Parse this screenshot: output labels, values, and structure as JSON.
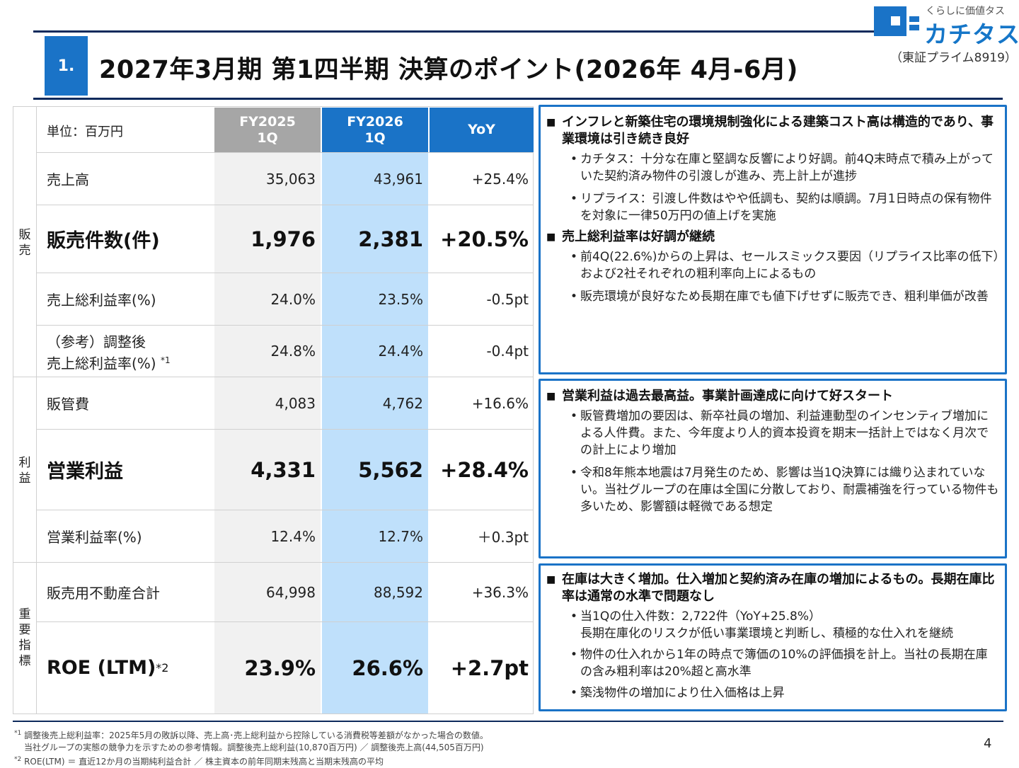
{
  "header": {
    "section_number": "1.",
    "title": "2027年3月期 第1四半期 決算のポイント(2026年 4月-6月)",
    "logo_tagline": "くらしに価値タス",
    "logo_name": "カチタス",
    "ticker": "（東証プライム8919）"
  },
  "table": {
    "unit": "単位：百万円",
    "columns": [
      {
        "line1": "FY2025",
        "line2": "1Q"
      },
      {
        "line1": "FY2026",
        "line2": "1Q"
      },
      {
        "line1": "YoY"
      }
    ],
    "groups": {
      "sales": "販\n売",
      "profit": "利\n益",
      "kpi": "重\n要\n指\n標"
    },
    "rows": [
      {
        "label": "売上高",
        "fy25": "35,063",
        "fy26": "43,961",
        "yoy": "+25.4%"
      },
      {
        "label": "販売件数(件)",
        "fy25": "1,976",
        "fy26": "2,381",
        "yoy": "+20.5%"
      },
      {
        "label": "売上総利益率(%)",
        "fy25": "24.0%",
        "fy26": "23.5%",
        "yoy": "-0.5pt"
      },
      {
        "label_line1": "（参考）調整後",
        "label_line2": "売上総利益率(%)",
        "label_sup": "*1",
        "fy25": "24.8%",
        "fy26": "24.4%",
        "yoy": "-0.4pt"
      },
      {
        "label": "販管費",
        "fy25": "4,083",
        "fy26": "4,762",
        "yoy": "+16.6%"
      },
      {
        "label": "営業利益",
        "fy25": "4,331",
        "fy26": "5,562",
        "yoy": "+28.4%"
      },
      {
        "label": "営業利益率(%)",
        "fy25": "12.4%",
        "fy26": "12.7%",
        "yoy": "＋0.3pt"
      },
      {
        "label": "販売用不動産合計",
        "fy25": "64,998",
        "fy26": "88,592",
        "yoy": "+36.3%"
      },
      {
        "label": "ROE (LTM)",
        "label_sup": "*2",
        "fy25": "23.9%",
        "fy26": "26.6%",
        "yoy": "+2.7pt"
      }
    ]
  },
  "panels": [
    {
      "heading": "インフレと新築住宅の環境規制強化による建築コスト高は構造的であり、事業環境は引き続き良好",
      "bullets": [
        "カチタス：十分な在庫と堅調な反響により好調。前4Q末時点で積み上がっていた契約済み物件の引渡しが進み、売上計上が進捗",
        "リプライス：引渡し件数はやや低調も、契約は順調。7月1日時点の保有物件を対象に一律50万円の値上げを実施"
      ],
      "heading2": "売上総利益率は好調が継続",
      "bullets2": [
        "前4Q(22.6%)からの上昇は、セールスミックス要因（リプライス比率の低下）および2社それぞれの粗利率向上によるもの",
        "販売環境が良好なため長期在庫でも値下げせずに販売でき、粗利単価が改善"
      ]
    },
    {
      "heading": "営業利益は過去最高益。事業計画達成に向けて好スタート",
      "bullets": [
        "販管費増加の要因は、新卒社員の増加、利益連動型のインセンティブ増加による人件費。また、今年度より人的資本投資を期末一括計上ではなく月次での計上により増加",
        "令和8年熊本地震は7月発生のため、影響は当1Q決算には織り込まれていない。当社グループの在庫は全国に分散しており、耐震補強を行っている物件も多いため、影響額は軽微である想定"
      ]
    },
    {
      "heading": "在庫は大きく増加。仕入増加と契約済み在庫の増加によるもの。長期在庫比率は通常の水準で問題なし",
      "bullets": [
        "当1Qの仕入件数：2,722件（YoY+25.8%）",
        "物件の仕入れから1年の時点で簿価の10%の評価損を計上。当社の長期在庫の含み粗利率は20%超と高水準",
        "築浅物件の増加により仕入価格は上昇"
      ],
      "bullet1_line2": "長期在庫化のリスクが低い事業環境と判断し、積極的な仕入れを継続"
    }
  ],
  "footnotes": {
    "n1_mark": "*1",
    "n1_line1": "調整後売上総利益率：2025年5月の敗訴以降、売上高･売上総利益から控除している消費税等差額がなかった場合の数値。",
    "n1_line2": "当社グループの実態の競争力を示すための参考情報。調整後売上総利益(10,870百万円) ／ 調整後売上高(44,505百万円)",
    "n2_mark": "*2",
    "n2_line1": "ROE(LTM) ＝ 直近12か月の当期純利益合計 ／ 株主資本の前年同期末残高と当期末残高の平均"
  },
  "page_number": "4",
  "colors": {
    "accent": "#1a73c7",
    "navy": "#0d2a5c",
    "fy25_header": "#a6a6a6",
    "fy26_column": "#bfe0fb"
  }
}
